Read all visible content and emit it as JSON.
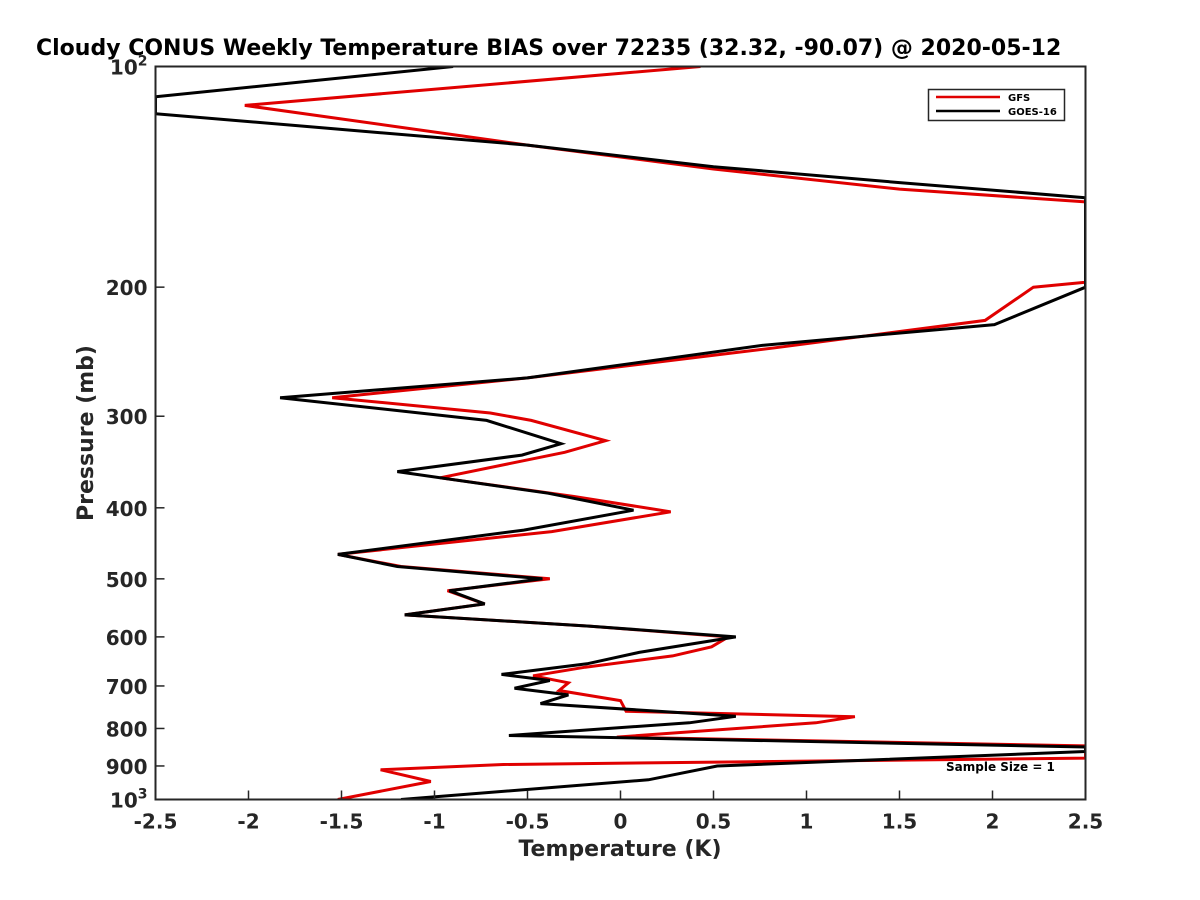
{
  "chart_data": {
    "type": "line",
    "title": "Cloudy CONUS Weekly Temperature BIAS over 72235 (32.32, -90.07) @ 2020-05-12",
    "xlabel": "Temperature (K)",
    "ylabel": "Pressure (mb)",
    "xlim": [
      -2.5,
      2.5
    ],
    "ylim": [
      100,
      1000
    ],
    "yscale": "log",
    "y_reversed": true,
    "grid": false,
    "legend_position": "top-right",
    "x_ticks": [
      "-2.5",
      "-2",
      "-1.5",
      "-1",
      "-0.5",
      "0",
      "0.5",
      "1",
      "1.5",
      "2",
      "2.5"
    ],
    "y_ticks": [
      {
        "value": 100,
        "base": "10",
        "exp": "2",
        "text": ""
      },
      {
        "value": 200,
        "text": "200"
      },
      {
        "value": 300,
        "text": "300"
      },
      {
        "value": 400,
        "text": "400"
      },
      {
        "value": 500,
        "text": "500"
      },
      {
        "value": 600,
        "text": "600"
      },
      {
        "value": 700,
        "text": "700"
      },
      {
        "value": 800,
        "text": "800"
      },
      {
        "value": 900,
        "text": "900"
      },
      {
        "value": 1000,
        "base": "10",
        "exp": "3",
        "text": ""
      }
    ],
    "series": [
      {
        "name": "GFS",
        "color": "#e00000",
        "points": [
          [
            0.43,
            100
          ],
          [
            -2.02,
            113
          ],
          [
            -0.5,
            128
          ],
          [
            0.5,
            138
          ],
          [
            1.5,
            147
          ],
          [
            2.5,
            153
          ],
          [
            2.5,
            197
          ],
          [
            2.22,
            200
          ],
          [
            1.96,
            222
          ],
          [
            0.83,
            242
          ],
          [
            -0.5,
            266
          ],
          [
            -1.55,
            283
          ],
          [
            -0.7,
            297
          ],
          [
            -0.48,
            304
          ],
          [
            -0.08,
            324
          ],
          [
            -0.3,
            336
          ],
          [
            -0.97,
            364
          ],
          [
            -0.25,
            386
          ],
          [
            0.27,
            405
          ],
          [
            -0.37,
            431
          ],
          [
            -1.52,
            463
          ],
          [
            -1.18,
            481
          ],
          [
            -0.38,
            500
          ],
          [
            -0.93,
            519
          ],
          [
            -0.73,
            541
          ],
          [
            -1.16,
            560
          ],
          [
            -0.17,
            580
          ],
          [
            0.58,
            600
          ],
          [
            0.49,
            619
          ],
          [
            0.28,
            637
          ],
          [
            -0.19,
            660
          ],
          [
            -0.47,
            678
          ],
          [
            -0.28,
            693
          ],
          [
            -0.33,
            710
          ],
          [
            0.0,
            733
          ],
          [
            0.03,
            758
          ],
          [
            1.26,
            771
          ],
          [
            1.05,
            786
          ],
          [
            -0.02,
            822
          ],
          [
            2.5,
            845
          ],
          [
            2.5,
            878
          ],
          [
            -0.63,
            896
          ],
          [
            -1.29,
            911
          ],
          [
            -1.02,
            945
          ],
          [
            -1.52,
            1000
          ]
        ]
      },
      {
        "name": "GOES-16",
        "color": "#000000",
        "points": [
          [
            -0.9,
            100
          ],
          [
            -2.5,
            110
          ],
          [
            -2.5,
            116
          ],
          [
            -0.5,
            128
          ],
          [
            0.5,
            137
          ],
          [
            1.5,
            144
          ],
          [
            2.5,
            151
          ],
          [
            2.5,
            200
          ],
          [
            2.01,
            225
          ],
          [
            0.77,
            240
          ],
          [
            -0.5,
            266
          ],
          [
            -1.83,
            283
          ],
          [
            -0.72,
            304
          ],
          [
            -0.32,
            327
          ],
          [
            -0.53,
            339
          ],
          [
            -1.2,
            357
          ],
          [
            -0.39,
            382
          ],
          [
            0.07,
            403
          ],
          [
            -0.52,
            429
          ],
          [
            -1.52,
            463
          ],
          [
            -1.2,
            481
          ],
          [
            -0.42,
            500
          ],
          [
            -0.92,
            519
          ],
          [
            -0.73,
            541
          ],
          [
            -1.16,
            560
          ],
          [
            -0.17,
            580
          ],
          [
            0.62,
            600
          ],
          [
            0.1,
            630
          ],
          [
            -0.18,
            653
          ],
          [
            -0.64,
            675
          ],
          [
            -0.38,
            688
          ],
          [
            -0.57,
            705
          ],
          [
            -0.28,
            720
          ],
          [
            -0.43,
            740
          ],
          [
            0.62,
            770
          ],
          [
            0.37,
            786
          ],
          [
            -0.6,
            818
          ],
          [
            2.5,
            848
          ],
          [
            2.5,
            860
          ],
          [
            0.52,
            900
          ],
          [
            0.15,
            940
          ],
          [
            -1.18,
            1000
          ]
        ]
      }
    ],
    "annotations": [
      "Sample Size = 1"
    ]
  }
}
